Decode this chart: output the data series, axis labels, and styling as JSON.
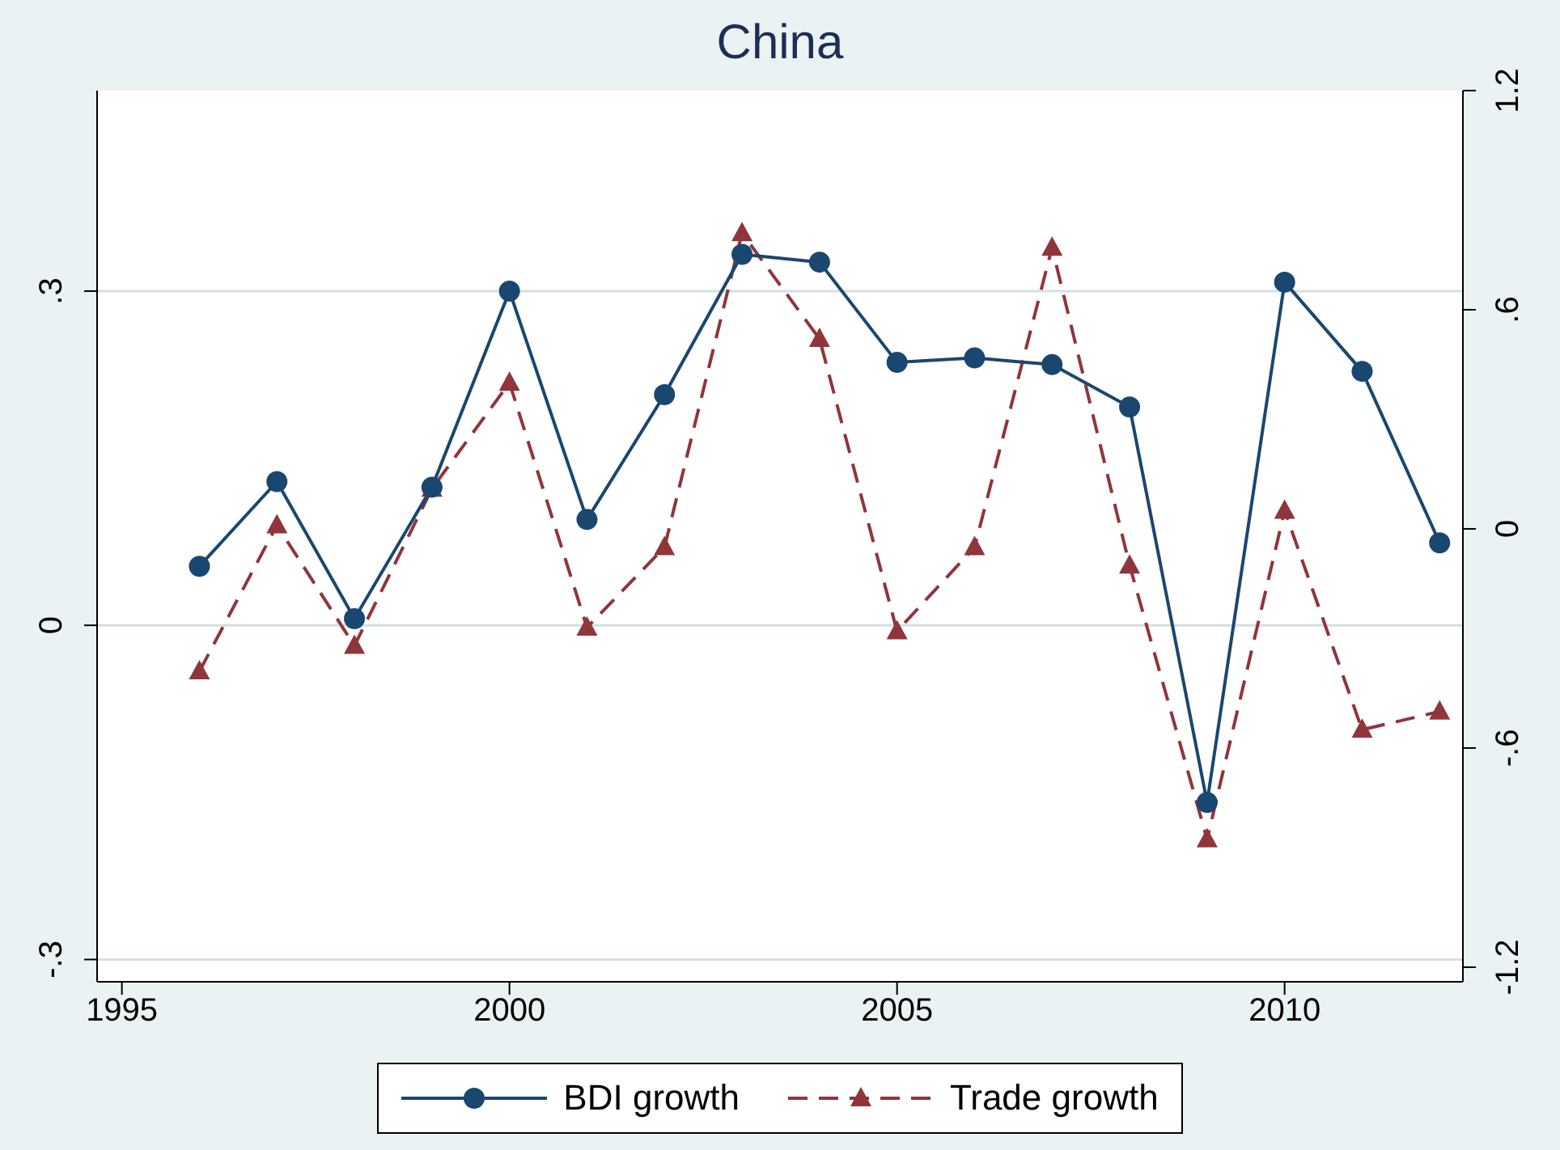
{
  "chart_data": {
    "type": "line",
    "title": "China",
    "x": [
      1996,
      1997,
      1998,
      1999,
      2000,
      2001,
      2002,
      2003,
      2004,
      2005,
      2006,
      2007,
      2008,
      2009,
      2010,
      2011,
      2012
    ],
    "series": [
      {
        "name": "BDI growth",
        "color": "#1a476f",
        "marker": "circle",
        "line_style": "solid",
        "values": [
          0.053,
          0.129,
          0.006,
          0.124,
          0.3,
          0.095,
          0.207,
          0.333,
          0.326,
          0.236,
          0.24,
          0.234,
          0.196,
          -0.159,
          0.308,
          0.228,
          0.074
        ]
      },
      {
        "name": "Trade growth",
        "color": "#90353b",
        "marker": "triangle",
        "line_style": "dashed",
        "axis": "y2",
        "values": [
          -0.39,
          0.01,
          -0.32,
          0.11,
          0.4,
          -0.27,
          -0.05,
          0.81,
          0.52,
          -0.28,
          -0.05,
          0.77,
          -0.1,
          -0.85,
          0.05,
          -0.55,
          -0.5
        ]
      }
    ],
    "xlim": [
      1994.68,
      2012.3
    ],
    "xticks": [
      1995,
      2000,
      2005,
      2010
    ],
    "ylim": [
      -0.32,
      0.48
    ],
    "yticks": [
      {
        "value": -0.3,
        "label": "-.3"
      },
      {
        "value": 0,
        "label": "0"
      },
      {
        "value": 0.3,
        "label": ".3"
      }
    ],
    "y2lim": [
      -1.24,
      1.2
    ],
    "y2ticks": [
      {
        "value": -1.2,
        "label": "-1.2"
      },
      {
        "value": -0.6,
        "label": "-.6"
      },
      {
        "value": 0,
        "label": "0"
      },
      {
        "value": 0.6,
        "label": ".6"
      },
      {
        "value": 1.2,
        "label": "1.2"
      }
    ],
    "grid": "y",
    "legend": "bottom"
  }
}
